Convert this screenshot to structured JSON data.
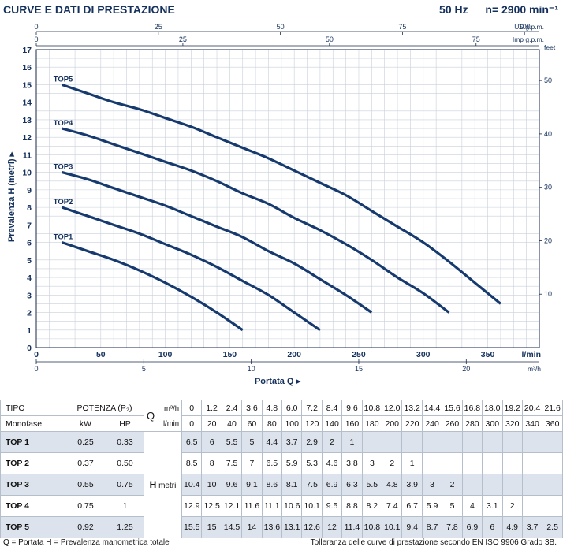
{
  "header": {
    "title": "CURVE E DATI DI PRESTAZIONE",
    "freq": "50 Hz",
    "speed": "n= 2900 min⁻¹"
  },
  "chart_data": {
    "type": "line",
    "ylabel": "Prevalenza H (metri)",
    "xlabel": "Portata Q",
    "x_unit": "l/min",
    "xlim": [
      0,
      390
    ],
    "ylim": [
      0,
      17
    ],
    "y_ticks": [
      0,
      1,
      2,
      3,
      4,
      5,
      6,
      7,
      8,
      9,
      10,
      11,
      12,
      13,
      14,
      15,
      16,
      17
    ],
    "x_ticks": [
      0,
      50,
      100,
      150,
      200,
      250,
      300,
      350
    ],
    "feet_axis": {
      "label": "feet",
      "ticks": [
        10,
        20,
        30,
        40,
        50
      ]
    },
    "us_gpm_axis": {
      "label": "US g.p.m.",
      "ticks": [
        0,
        25,
        50,
        75,
        100
      ]
    },
    "imp_gpm_axis": {
      "label": "Imp g.p.m.",
      "ticks": [
        0,
        25,
        50,
        75
      ]
    },
    "m3h_axis": {
      "label": "m³/h",
      "ticks": [
        0,
        5,
        10,
        15,
        20
      ]
    },
    "grid": true,
    "series": [
      {
        "name": "TOP1",
        "x": [
          20,
          40,
          60,
          80,
          100,
          120,
          140,
          160
        ],
        "y": [
          6,
          5.5,
          5,
          4.4,
          3.7,
          2.9,
          2,
          1
        ]
      },
      {
        "name": "TOP2",
        "x": [
          20,
          40,
          60,
          80,
          100,
          120,
          140,
          160,
          180,
          200,
          220
        ],
        "y": [
          8,
          7.5,
          7,
          6.5,
          5.9,
          5.3,
          4.6,
          3.8,
          3,
          2,
          1
        ]
      },
      {
        "name": "TOP3",
        "x": [
          20,
          40,
          60,
          80,
          100,
          120,
          140,
          160,
          180,
          200,
          220,
          240,
          260
        ],
        "y": [
          10,
          9.6,
          9.1,
          8.6,
          8.1,
          7.5,
          6.9,
          6.3,
          5.5,
          4.8,
          3.9,
          3,
          2
        ]
      },
      {
        "name": "TOP4",
        "x": [
          20,
          40,
          60,
          80,
          100,
          120,
          140,
          160,
          180,
          200,
          220,
          240,
          260,
          280,
          300,
          320
        ],
        "y": [
          12.5,
          12.1,
          11.6,
          11.1,
          10.6,
          10.1,
          9.5,
          8.8,
          8.2,
          7.4,
          6.7,
          5.9,
          5,
          4,
          3.1,
          2
        ]
      },
      {
        "name": "TOP5",
        "x": [
          20,
          40,
          60,
          80,
          100,
          120,
          140,
          160,
          180,
          200,
          220,
          240,
          260,
          280,
          300,
          320,
          340,
          360
        ],
        "y": [
          15,
          14.5,
          14,
          13.6,
          13.1,
          12.6,
          12,
          11.4,
          10.8,
          10.1,
          9.4,
          8.7,
          7.8,
          6.9,
          6,
          4.9,
          3.7,
          2.5
        ]
      }
    ],
    "line_color": "#163a6e"
  },
  "table": {
    "h_tipo": "TIPO",
    "h_monofase": "Monofase",
    "h_potenza": "POTENZA (P₂)",
    "h_kw": "kW",
    "h_hp": "HP",
    "h_q": "Q",
    "h_m3h": "m³/h",
    "h_lmin": "l/min",
    "h_h": "H",
    "h_metri": "metri",
    "m3h": [
      "0",
      "1.2",
      "2.4",
      "3.6",
      "4.8",
      "6.0",
      "7.2",
      "8.4",
      "9.6",
      "10.8",
      "12.0",
      "13.2",
      "14.4",
      "15.6",
      "16.8",
      "18.0",
      "19.2",
      "20.4",
      "21.6"
    ],
    "lmin": [
      "0",
      "20",
      "40",
      "60",
      "80",
      "100",
      "120",
      "140",
      "160",
      "180",
      "200",
      "220",
      "240",
      "260",
      "280",
      "300",
      "320",
      "340",
      "360"
    ],
    "rows": [
      {
        "name": "TOP 1",
        "kw": "0.25",
        "hp": "0.33",
        "h": [
          "6.5",
          "6",
          "5.5",
          "5",
          "4.4",
          "3.7",
          "2.9",
          "2",
          "1",
          "",
          "",
          "",
          "",
          "",
          "",
          "",
          "",
          "",
          ""
        ]
      },
      {
        "name": "TOP 2",
        "kw": "0.37",
        "hp": "0.50",
        "h": [
          "8.5",
          "8",
          "7.5",
          "7",
          "6.5",
          "5.9",
          "5.3",
          "4.6",
          "3.8",
          "3",
          "2",
          "1",
          "",
          "",
          "",
          "",
          "",
          "",
          ""
        ]
      },
      {
        "name": "TOP 3",
        "kw": "0.55",
        "hp": "0.75",
        "h": [
          "10.4",
          "10",
          "9.6",
          "9.1",
          "8.6",
          "8.1",
          "7.5",
          "6.9",
          "6.3",
          "5.5",
          "4.8",
          "3.9",
          "3",
          "2",
          "",
          "",
          "",
          "",
          ""
        ]
      },
      {
        "name": "TOP 4",
        "kw": "0.75",
        "hp": "1",
        "h": [
          "12.9",
          "12.5",
          "12.1",
          "11.6",
          "11.1",
          "10.6",
          "10.1",
          "9.5",
          "8.8",
          "8.2",
          "7.4",
          "6.7",
          "5.9",
          "5",
          "4",
          "3.1",
          "2",
          "",
          ""
        ]
      },
      {
        "name": "TOP 5",
        "kw": "0.92",
        "hp": "1.25",
        "h": [
          "15.5",
          "15",
          "14.5",
          "14",
          "13.6",
          "13.1",
          "12.6",
          "12",
          "11.4",
          "10.8",
          "10.1",
          "9.4",
          "8.7",
          "7.8",
          "6.9",
          "6",
          "4.9",
          "3.7",
          "2.5"
        ]
      }
    ]
  },
  "footer": {
    "left": "Q = Portata  H = Prevalenza manometrica totale",
    "right": "Tolleranza delle curve di prestazione secondo EN ISO 9906 Grado 3B."
  }
}
